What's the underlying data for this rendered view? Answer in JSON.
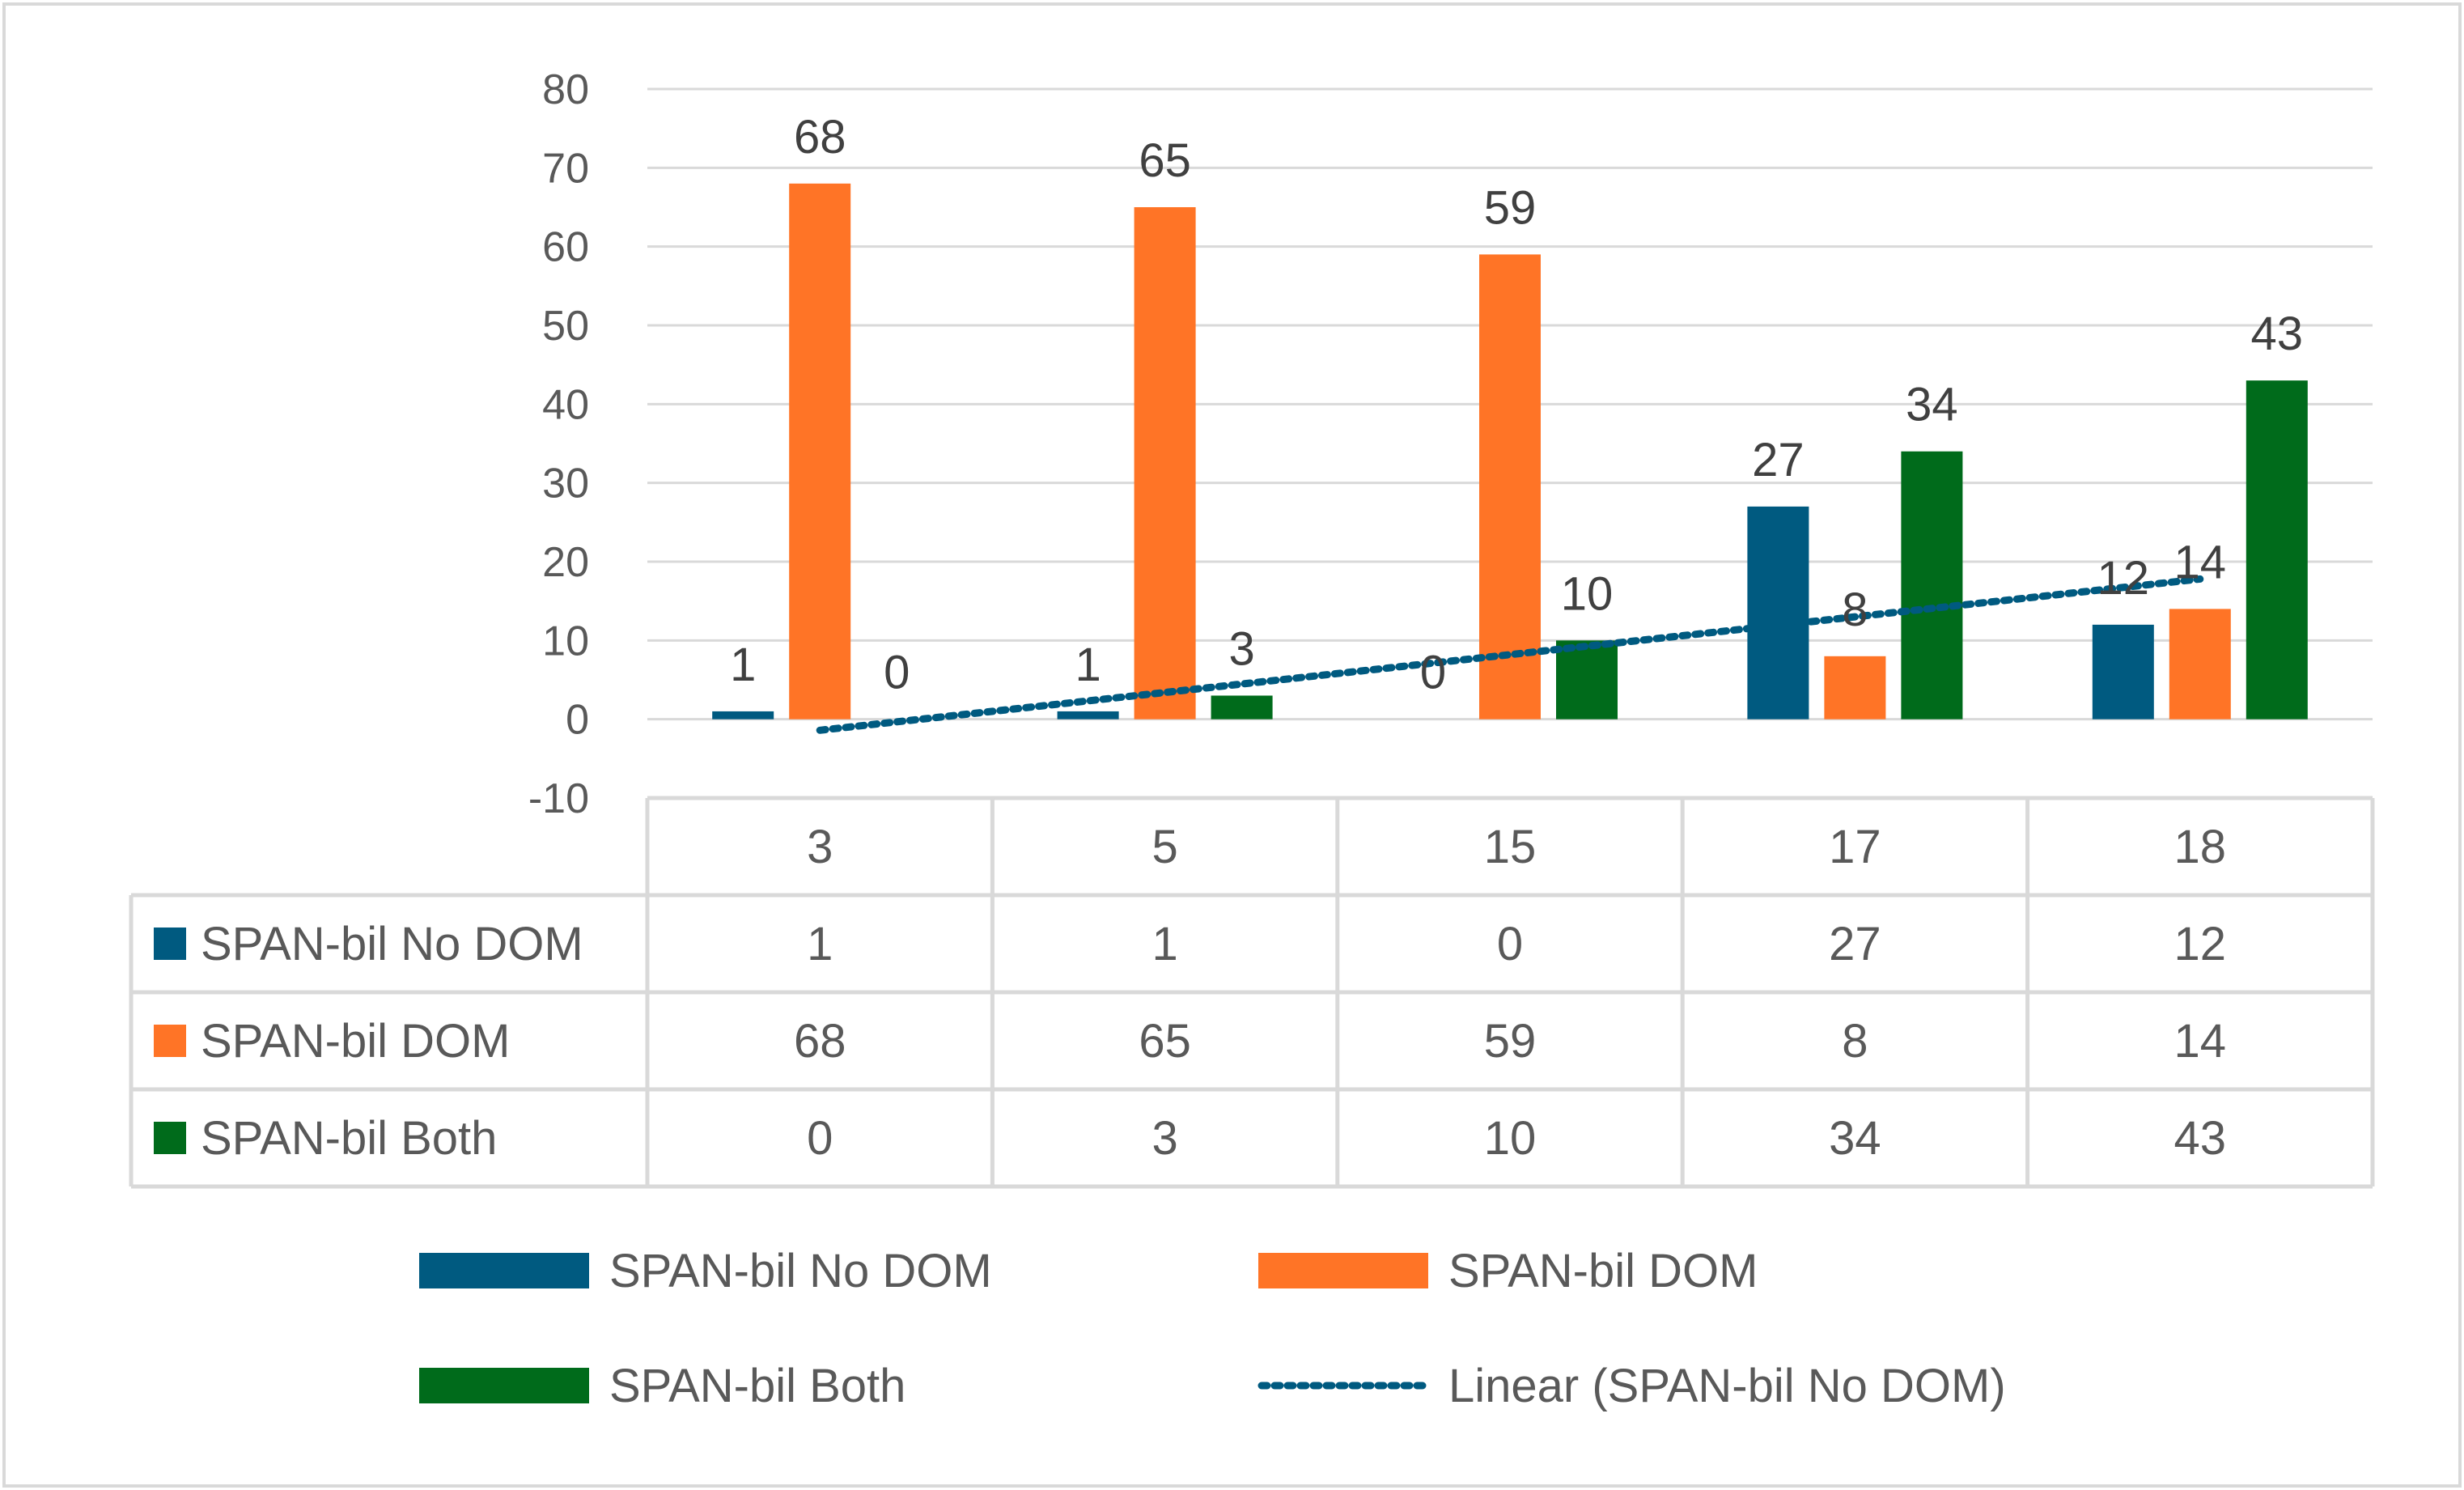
{
  "chart_data": {
    "type": "bar",
    "categories": [
      "3",
      "5",
      "15",
      "17",
      "18"
    ],
    "series": [
      {
        "name": "SPAN-bil No DOM",
        "values": [
          1,
          1,
          0,
          27,
          12
        ],
        "color": "#005a80"
      },
      {
        "name": "SPAN-bil DOM",
        "values": [
          68,
          65,
          59,
          8,
          14
        ],
        "color": "#ff7426"
      },
      {
        "name": "SPAN-bil Both",
        "values": [
          0,
          3,
          10,
          34,
          43
        ],
        "color": "#006b1b"
      }
    ],
    "trendline": {
      "label": "Linear (SPAN-bil No DOM)",
      "of_series": "SPAN-bil No DOM",
      "kind": "linear",
      "color": "#005a80",
      "style": "dotted"
    },
    "ylim": [
      -10,
      80
    ],
    "yticks": [
      80,
      70,
      60,
      50,
      40,
      30,
      20,
      10,
      0,
      -10
    ],
    "grid": true,
    "data_table": true,
    "legend_position": "bottom",
    "title": "",
    "xlabel": "",
    "ylabel": ""
  }
}
